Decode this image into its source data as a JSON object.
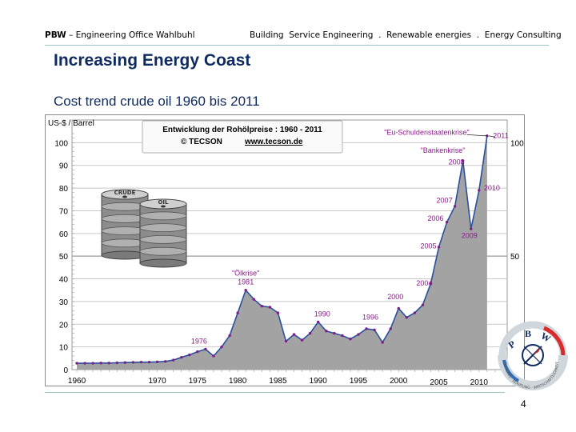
{
  "header": {
    "company_abbr": "PBW",
    "company_rest": " – Engineering Office Wahlbuhl",
    "services": "Building  Service Engineering  .  Renewable energies  .  Energy Consulting"
  },
  "slide": {
    "title": "Increasing Energy Coast",
    "subtitle": "Cost trend  crude oil 1960 bis 2011",
    "page_number": "4"
  },
  "logo": {
    "letters": [
      "P",
      "B",
      "W"
    ],
    "ring_text": "PLANUNG · BERATUNG · WIRTSCHAFTLICHKEIT"
  },
  "barrels": {
    "label_1": "CRUDE",
    "label_2": "OIL"
  },
  "chart_data": {
    "type": "area",
    "unit_label": "US-$ / Barrel",
    "legend_box": {
      "line1": "Entwicklung der Rohölpreise :   1960 - 2011",
      "line2": "© TECSON",
      "link": "www.tecson.de"
    },
    "ylim": [
      0,
      110
    ],
    "yticks": [
      0,
      10,
      20,
      30,
      40,
      50,
      60,
      70,
      80,
      90,
      100
    ],
    "right_ticks": [
      50,
      100
    ],
    "xticks": [
      1960,
      1970,
      1975,
      1980,
      1985,
      1990,
      1995,
      2000,
      2005,
      2010
    ],
    "grid": true,
    "fill_color": "#a3a3a3",
    "line_color": "#2b4f9e",
    "marker_color": "#7a1f8c",
    "label_color": "#8b1a8b",
    "series": [
      {
        "x": [
          1960,
          1961,
          1962,
          1963,
          1964,
          1965,
          1966,
          1967,
          1968,
          1969,
          1970,
          1971,
          1972,
          1973,
          1974,
          1975,
          1976,
          1977,
          1978,
          1979,
          1980,
          1981,
          1982,
          1983,
          1984,
          1985,
          1986,
          1987,
          1988,
          1989,
          1990,
          1991,
          1992,
          1993,
          1994,
          1995,
          1996,
          1997,
          1998,
          1999,
          2000,
          2001,
          2002,
          2003,
          2004,
          2005,
          2006,
          2007,
          2008,
          2009,
          2010,
          2011
        ],
        "values": [
          2.8,
          2.8,
          2.8,
          2.9,
          2.9,
          3.0,
          3.1,
          3.2,
          3.3,
          3.3,
          3.4,
          3.6,
          4.2,
          5.4,
          6.5,
          7.9,
          9.0,
          6.0,
          10.0,
          15.0,
          25.0,
          35.0,
          31.0,
          28.0,
          27.5,
          25.0,
          12.5,
          15.5,
          13.0,
          16.0,
          21.0,
          17.0,
          16.0,
          15.0,
          13.5,
          15.5,
          18.0,
          17.5,
          12.0,
          18.0,
          27.0,
          23.0,
          25.0,
          28.5,
          38.0,
          54.0,
          65.0,
          72.0,
          92.0,
          62.0,
          79.0,
          103.0
        ]
      }
    ],
    "annotations": [
      {
        "text": "1976",
        "x": 1975.2,
        "y": 11.5
      },
      {
        "text": "\"Ölkrise\"",
        "x": 1981,
        "y": 41.5
      },
      {
        "text": "1981",
        "x": 1981,
        "y": 37.5
      },
      {
        "text": "1990",
        "x": 1990.5,
        "y": 23.5
      },
      {
        "text": "1996",
        "x": 1996.5,
        "y": 22
      },
      {
        "text": "2000",
        "x": 1999.6,
        "y": 31
      },
      {
        "text": "2004",
        "x": 2003.2,
        "y": 37
      },
      {
        "text": "2005",
        "x": 2003.7,
        "y": 53.5
      },
      {
        "text": "2006",
        "x": 2004.6,
        "y": 65.5
      },
      {
        "text": "2007",
        "x": 2005.7,
        "y": 73.5
      },
      {
        "text": "\"Bankenkrise\"",
        "x": 2005.5,
        "y": 95.5
      },
      {
        "text": "2008",
        "x": 2007.2,
        "y": 90.5
      },
      {
        "text": "2009",
        "x": 2008.8,
        "y": 58
      },
      {
        "text": "2010",
        "x": 2011.6,
        "y": 79
      },
      {
        "text": "\"Eu-Schuldenstaatenkrise\"",
        "x": 2003.5,
        "y": 103.5
      },
      {
        "text": "2011",
        "x": 2012.7,
        "y": 102
      }
    ]
  }
}
